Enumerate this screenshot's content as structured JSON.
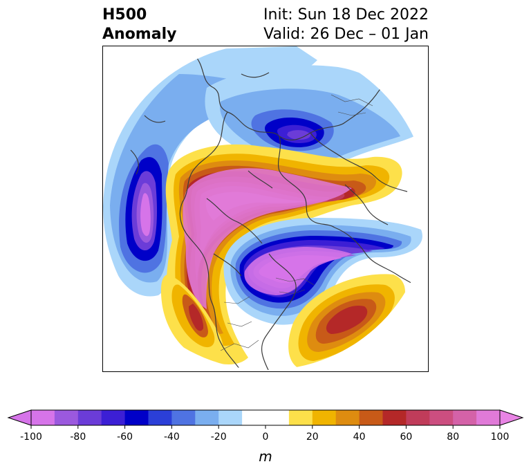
{
  "header": {
    "title_line1": "H500",
    "title_line2": "Anomaly",
    "init": "Init: Sun 18 Dec 2022",
    "valid": "Valid: 26 Dec – 01 Jan"
  },
  "colorbar": {
    "unit": "m",
    "min": -100,
    "max": 100,
    "step": 10,
    "extend": "both",
    "ticks": [
      -100,
      -80,
      -60,
      -40,
      -20,
      0,
      20,
      40,
      60,
      80,
      100
    ],
    "colors": [
      "#d674e9",
      "#9b59de",
      "#6b3cd8",
      "#3c1fd5",
      "#0000c8",
      "#2b3fd8",
      "#4f73e2",
      "#7aaeef",
      "#aad6fa",
      "#ffffff",
      "#ffffff",
      "#fde04a",
      "#f0b400",
      "#de8c10",
      "#c85a18",
      "#b42828",
      "#c03c5a",
      "#cc4e80",
      "#d462a8",
      "#e07ad8"
    ],
    "under_color": "#d674e9",
    "over_color": "#e884e4"
  },
  "map": {
    "projection": "polar stereographic (north pole)",
    "features": [
      "coastlines",
      "country borders",
      "state borders"
    ],
    "anomaly_centers": [
      {
        "sign": "negative",
        "level_m": -100,
        "location": "Northeast Pacific / Gulf of Alaska"
      },
      {
        "sign": "negative",
        "level_m": -100,
        "location": "Central Canada"
      },
      {
        "sign": "negative",
        "level_m": -60,
        "location": "North Atlantic / Scandinavia"
      },
      {
        "sign": "positive",
        "level_m": 100,
        "location": "Siberia / Arctic Ocean"
      },
      {
        "sign": "positive",
        "level_m": 100,
        "location": "Northern Europe"
      },
      {
        "sign": "positive",
        "level_m": 80,
        "location": "Western Europe / Mediterranean"
      },
      {
        "sign": "positive",
        "level_m": 60,
        "location": "Central North Pacific"
      }
    ],
    "colors": {
      "coastline": "#3a3a3a",
      "frame": "#000000"
    }
  }
}
